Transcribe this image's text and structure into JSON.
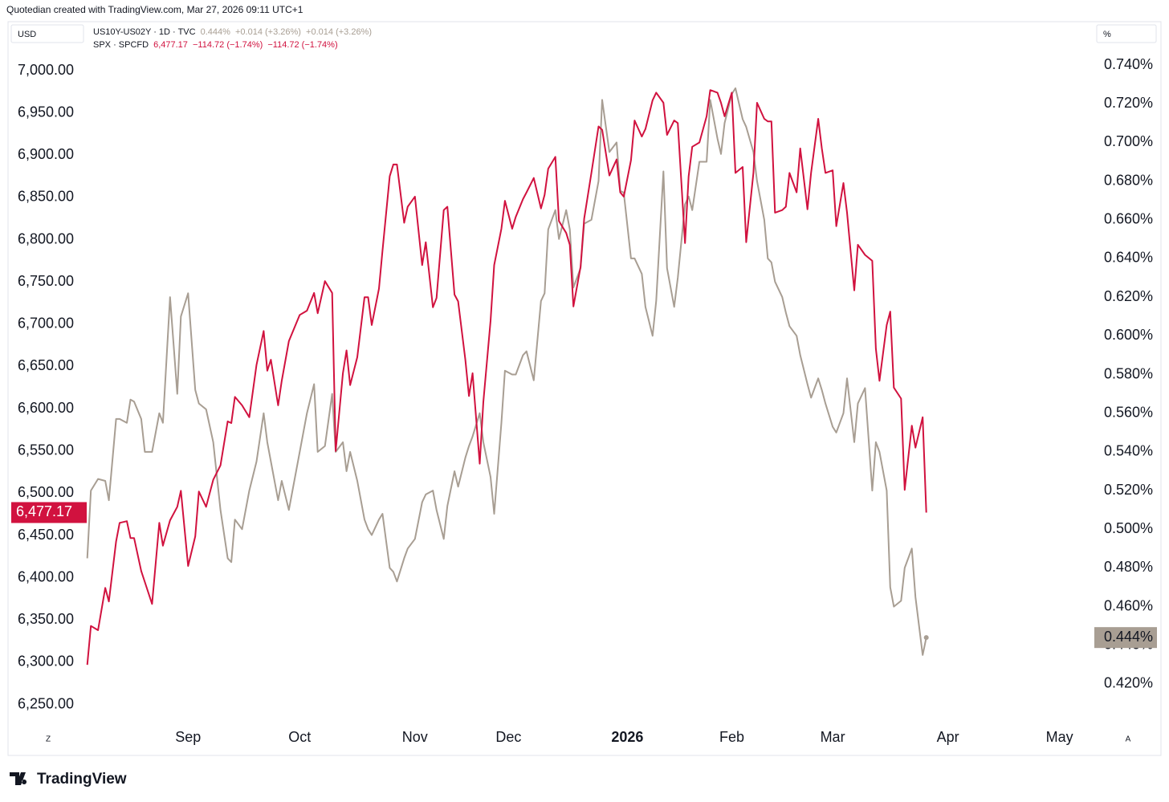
{
  "header": {
    "attribution": "Quotedian created with TradingView.com, Mar 27, 2026 09:11 UTC+1",
    "logo": "TradingView"
  },
  "chart_data": {
    "type": "line",
    "left_unit": "USD",
    "right_unit": "%",
    "scale_left_mark": "Z",
    "scale_right_mark": "A",
    "x": [
      -28,
      -27,
      -25,
      -23,
      -22,
      -20,
      -19,
      -17,
      -16,
      -15,
      -13,
      -12,
      -10,
      -8,
      -7,
      -5,
      -3,
      -2,
      0,
      2,
      3,
      5,
      7,
      9,
      11,
      12,
      13,
      15,
      17,
      19,
      21,
      22,
      23,
      25,
      26,
      28,
      31,
      33,
      35,
      36,
      38,
      40,
      41,
      43,
      44,
      45,
      47,
      49,
      50,
      51,
      53,
      54,
      56,
      57,
      58,
      60,
      61,
      63,
      65,
      66,
      68,
      69,
      71,
      72,
      74,
      75,
      77,
      78,
      79,
      81,
      82,
      84,
      85,
      87,
      88,
      90,
      91,
      93,
      94,
      96,
      98,
      99,
      100,
      102,
      103,
      105,
      106,
      107,
      109,
      110,
      112,
      114,
      115,
      117,
      119,
      120,
      121,
      123,
      124,
      126,
      127,
      129,
      130,
      132,
      133,
      135,
      136,
      138,
      139,
      140,
      142,
      144,
      145,
      147,
      148,
      149,
      151,
      152,
      154,
      155,
      157,
      158,
      160,
      161,
      162,
      163,
      165,
      166,
      167,
      169,
      170,
      172,
      173,
      175,
      176,
      177,
      179,
      180,
      182,
      183,
      185,
      186,
      188,
      190,
      191,
      192,
      194,
      195,
      196,
      198,
      199,
      201,
      202,
      204,
      205
    ],
    "xlim": [
      -50,
      251
    ],
    "xticks": [
      {
        "value": 0,
        "label": "Sep"
      },
      {
        "value": 31,
        "label": "Oct"
      },
      {
        "value": 63,
        "label": "Nov"
      },
      {
        "value": 89,
        "label": "Dec"
      },
      {
        "value": 122,
        "label": "2026"
      },
      {
        "value": 151,
        "label": "Feb"
      },
      {
        "value": 179,
        "label": "Mar"
      },
      {
        "value": 211,
        "label": "Apr"
      },
      {
        "value": 242,
        "label": "May"
      }
    ],
    "ylim": [
      6224,
      7057
    ],
    "yticks": [
      {
        "value": 6250,
        "label": "6,250.00"
      },
      {
        "value": 6300,
        "label": "6,300.00"
      },
      {
        "value": 6350,
        "label": "6,350.00"
      },
      {
        "value": 6400,
        "label": "6,400.00"
      },
      {
        "value": 6450,
        "label": "6,450.00"
      },
      {
        "value": 6500,
        "label": "6,500.00"
      },
      {
        "value": 6550,
        "label": "6,550.00"
      },
      {
        "value": 6600,
        "label": "6,600.00"
      },
      {
        "value": 6650,
        "label": "6,650.00"
      },
      {
        "value": 6700,
        "label": "6,700.00"
      },
      {
        "value": 6750,
        "label": "6,750.00"
      },
      {
        "value": 6800,
        "label": "6,800.00"
      },
      {
        "value": 6850,
        "label": "6,850.00"
      },
      {
        "value": 6900,
        "label": "6,900.00"
      },
      {
        "value": 6950,
        "label": "6,950.00"
      },
      {
        "value": 7000,
        "label": "7,000.00"
      }
    ],
    "y2lim": [
      0.398,
      0.762
    ],
    "y2ticks": [
      {
        "value": 0.42,
        "label": "0.420%"
      },
      {
        "value": 0.44,
        "label": "0.440%"
      },
      {
        "value": 0.46,
        "label": "0.460%"
      },
      {
        "value": 0.48,
        "label": "0.480%"
      },
      {
        "value": 0.5,
        "label": "0.500%"
      },
      {
        "value": 0.52,
        "label": "0.520%"
      },
      {
        "value": 0.54,
        "label": "0.540%"
      },
      {
        "value": 0.56,
        "label": "0.560%"
      },
      {
        "value": 0.58,
        "label": "0.580%"
      },
      {
        "value": 0.6,
        "label": "0.600%"
      },
      {
        "value": 0.62,
        "label": "0.620%"
      },
      {
        "value": 0.64,
        "label": "0.640%"
      },
      {
        "value": 0.66,
        "label": "0.660%"
      },
      {
        "value": 0.68,
        "label": "0.680%"
      },
      {
        "value": 0.7,
        "label": "0.700%"
      },
      {
        "value": 0.72,
        "label": "0.720%"
      },
      {
        "value": 0.74,
        "label": "0.740%"
      }
    ],
    "series": [
      {
        "name": "US10Y-US02Y · 1D · TVC",
        "legend_stats": "0.444%  +0.014 (+3.26%)  +0.014 (+3.26%)",
        "last_value_label": "0.444%",
        "color": "#a89e93",
        "axis": "y2",
        "values": [
          0.485,
          0.52,
          0.526,
          0.525,
          0.515,
          0.557,
          0.557,
          0.555,
          0.567,
          0.566,
          0.557,
          0.54,
          0.54,
          0.56,
          0.555,
          0.62,
          0.57,
          0.61,
          0.622,
          0.572,
          0.565,
          0.562,
          0.545,
          0.51,
          0.485,
          0.483,
          0.505,
          0.5,
          0.52,
          0.535,
          0.56,
          0.545,
          0.535,
          0.515,
          0.525,
          0.51,
          0.54,
          0.56,
          0.575,
          0.54,
          0.543,
          0.57,
          0.54,
          0.545,
          0.53,
          0.54,
          0.525,
          0.505,
          0.5,
          0.497,
          0.505,
          0.508,
          0.48,
          0.478,
          0.473,
          0.485,
          0.49,
          0.495,
          0.514,
          0.518,
          0.52,
          0.51,
          0.495,
          0.512,
          0.53,
          0.522,
          0.537,
          0.543,
          0.548,
          0.56,
          0.545,
          0.527,
          0.508,
          0.555,
          0.582,
          0.58,
          0.58,
          0.59,
          0.592,
          0.577,
          0.618,
          0.622,
          0.655,
          0.665,
          0.65,
          0.665,
          0.655,
          0.625,
          0.635,
          0.658,
          0.66,
          0.68,
          0.722,
          0.695,
          0.7,
          0.675,
          0.674,
          0.64,
          0.64,
          0.632,
          0.615,
          0.6,
          0.618,
          0.685,
          0.635,
          0.615,
          0.63,
          0.668,
          0.672,
          0.665,
          0.69,
          0.69,
          0.722,
          0.702,
          0.694,
          0.71,
          0.725,
          0.728,
          0.712,
          0.708,
          0.695,
          0.68,
          0.66,
          0.64,
          0.638,
          0.628,
          0.62,
          0.612,
          0.605,
          0.6,
          0.59,
          0.575,
          0.568,
          0.578,
          0.572,
          0.565,
          0.553,
          0.55,
          0.56,
          0.578,
          0.545,
          0.565,
          0.573,
          0.52,
          0.545,
          0.54,
          0.52,
          0.47,
          0.46,
          0.463,
          0.48,
          0.49,
          0.465,
          0.435,
          0.444
        ]
      },
      {
        "name": "SPX · SPCFD",
        "legend_stats": "6,477.17  −114.72 (−1.74%)  −114.72 (−1.74%)",
        "last_value_label": "6,477.17",
        "color": "#d1123f",
        "axis": "y",
        "values": [
          6297,
          6343,
          6338,
          6388,
          6372,
          6443,
          6465,
          6467,
          6447,
          6447,
          6408,
          6395,
          6369,
          6465,
          6438,
          6468,
          6484,
          6503,
          6414,
          6449,
          6502,
          6484,
          6516,
          6533,
          6585,
          6583,
          6614,
          6604,
          6590,
          6652,
          6692,
          6645,
          6658,
          6604,
          6633,
          6680,
          6711,
          6716,
          6737,
          6713,
          6751,
          6737,
          6550,
          6642,
          6669,
          6628,
          6661,
          6732,
          6732,
          6699,
          6742,
          6787,
          6875,
          6889,
          6889,
          6820,
          6839,
          6851,
          6770,
          6797,
          6720,
          6731,
          6835,
          6839,
          6735,
          6727,
          6658,
          6615,
          6642,
          6535,
          6608,
          6704,
          6770,
          6813,
          6846,
          6813,
          6827,
          6848,
          6856,
          6873,
          6837,
          6853,
          6884,
          6898,
          6822,
          6808,
          6794,
          6721,
          6768,
          6825,
          6879,
          6934,
          6930,
          6876,
          6895,
          6856,
          6851,
          6894,
          6941,
          6922,
          6931,
          6965,
          6974,
          6962,
          6924,
          6941,
          6938,
          6796,
          6875,
          6910,
          6915,
          6946,
          6977,
          6974,
          6962,
          6946,
          6974,
          6879,
          6886,
          6797,
          6879,
          6962,
          6943,
          6940,
          6940,
          6832,
          6835,
          6839,
          6879,
          6856,
          6908,
          6836,
          6879,
          6943,
          6908,
          6879,
          6882,
          6816,
          6867,
          6832,
          6740,
          6794,
          6782,
          6775,
          6671,
          6633,
          6699,
          6715,
          6625,
          6612,
          6504,
          6580,
          6554,
          6590,
          6477.17
        ]
      }
    ]
  }
}
